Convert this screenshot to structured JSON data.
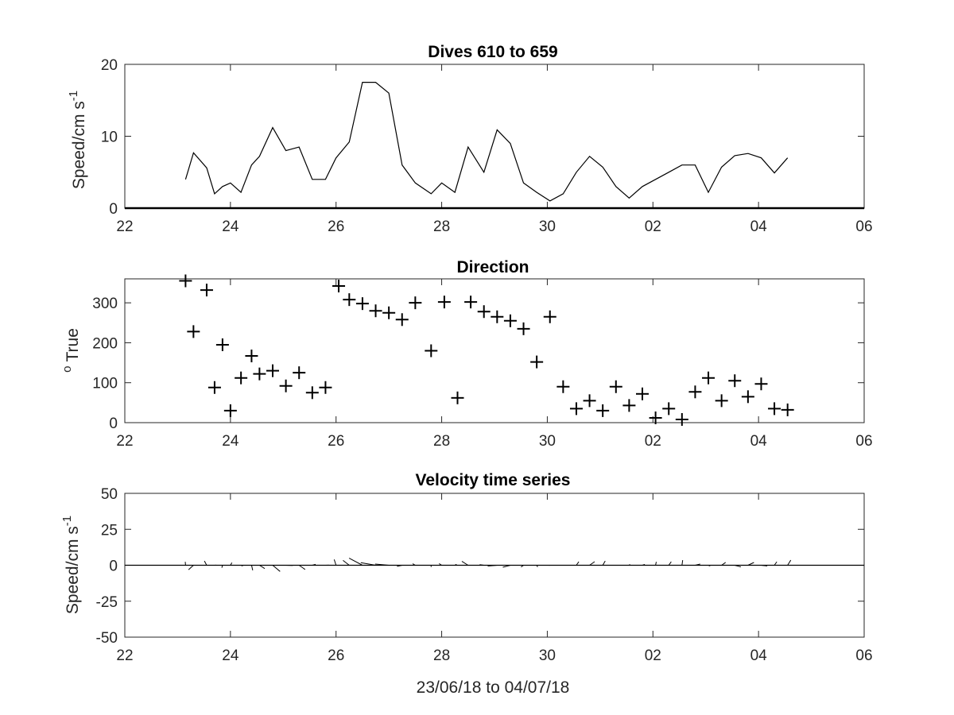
{
  "figure": {
    "xlabel": "23/06/18 to 04/07/18"
  },
  "chart_data": [
    {
      "type": "line",
      "title": "Dives 610 to 659",
      "ylabel": "Speed/cm s",
      "ylabel_superscript": "-1",
      "xlim": [
        22,
        36
      ],
      "ylim": [
        0,
        20
      ],
      "xtick_labels": [
        "22",
        "24",
        "26",
        "28",
        "30",
        "02",
        "04",
        "06"
      ],
      "ytick_labels": [
        "0",
        "10",
        "20"
      ],
      "grid": false,
      "series": [
        {
          "x": [
            23.15,
            23.3,
            23.55,
            23.7,
            23.85,
            24.0,
            24.2,
            24.4,
            24.55,
            24.8,
            25.05,
            25.3,
            25.55,
            25.8,
            26.0,
            26.25,
            26.5,
            26.75,
            27.0,
            27.25,
            27.5,
            27.8,
            28.0,
            28.25,
            28.5,
            28.8,
            29.05,
            29.3,
            29.55,
            29.8,
            30.05,
            30.3,
            30.55,
            30.8,
            31.05,
            31.3,
            31.55,
            31.8,
            32.05,
            32.3,
            32.55,
            32.8,
            33.05,
            33.3,
            33.55,
            33.8,
            34.05,
            34.3,
            34.55
          ],
          "y": [
            4.0,
            7.7,
            5.6,
            2.0,
            3.0,
            3.5,
            2.2,
            6.0,
            7.2,
            11.2,
            8.0,
            8.5,
            4.0,
            4.0,
            7.0,
            9.2,
            17.5,
            17.5,
            16.0,
            6.0,
            3.5,
            2.0,
            3.5,
            2.2,
            8.5,
            5.0,
            10.9,
            9.0,
            3.5,
            2.2,
            1.0,
            2.0,
            5.0,
            7.2,
            5.7,
            3.0,
            1.4,
            3.0,
            4.0,
            5.0,
            6.0,
            6.0,
            2.2,
            5.7,
            7.3,
            7.6,
            7.0,
            4.9,
            7.0
          ]
        }
      ]
    },
    {
      "type": "scatter",
      "title": "Direction",
      "ylabel": "True",
      "ylabel_prefix": "o",
      "xlim": [
        22,
        36
      ],
      "ylim": [
        0,
        360
      ],
      "xtick_labels": [
        "22",
        "24",
        "26",
        "28",
        "30",
        "02",
        "04",
        "06"
      ],
      "ytick_labels": [
        "0",
        "100",
        "200",
        "300"
      ],
      "grid": false,
      "marker": "+",
      "series": [
        {
          "x": [
            23.15,
            23.3,
            23.55,
            23.7,
            23.85,
            24.0,
            24.2,
            24.4,
            24.55,
            24.8,
            25.05,
            25.3,
            25.55,
            25.8,
            26.05,
            26.25,
            26.5,
            26.75,
            27.0,
            27.25,
            27.5,
            27.8,
            28.05,
            28.3,
            28.55,
            28.8,
            29.05,
            29.3,
            29.55,
            29.8,
            30.05,
            30.3,
            30.55,
            30.8,
            31.05,
            31.3,
            31.55,
            31.8,
            32.05,
            32.3,
            32.55,
            32.8,
            33.05,
            33.3,
            33.55,
            33.8,
            34.05,
            34.3,
            34.55
          ],
          "y": [
            355,
            228,
            332,
            88,
            195,
            30,
            112,
            167,
            122,
            130,
            92,
            125,
            75,
            88,
            342,
            308,
            298,
            280,
            275,
            258,
            300,
            180,
            302,
            62,
            302,
            278,
            265,
            255,
            235,
            152,
            265,
            90,
            35,
            55,
            30,
            90,
            43,
            72,
            12,
            35,
            8,
            77,
            112,
            55,
            105,
            65,
            97,
            35,
            32
          ]
        }
      ]
    },
    {
      "type": "line",
      "subtype": "stick-vector",
      "title": "Velocity time series",
      "ylabel": "Speed/cm s",
      "ylabel_superscript": "-1",
      "xlim": [
        22,
        36
      ],
      "ylim": [
        -50,
        50
      ],
      "xtick_labels": [
        "22",
        "24",
        "26",
        "28",
        "30",
        "02",
        "04",
        "06"
      ],
      "ytick_labels": [
        "-50",
        "-25",
        "0",
        "25",
        "50"
      ],
      "grid": false,
      "zero_line": true
    }
  ]
}
